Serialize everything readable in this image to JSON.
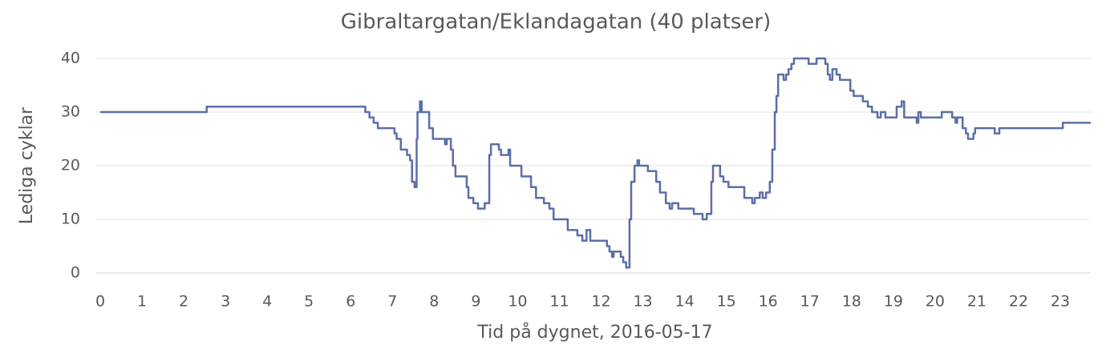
{
  "chart_data": {
    "type": "line",
    "step": true,
    "title": "Gibraltargatan/Eklandagatan (40 platser)",
    "x_label": "Tid på dygnet, 2016-05-17",
    "y_label": "Lediga cyklar",
    "color": "#5b6ea8",
    "grid": true,
    "xlim": [
      0,
      23.73
    ],
    "ylim": [
      0,
      40
    ],
    "xticks": [
      0,
      1,
      2,
      3,
      4,
      5,
      6,
      7,
      8,
      9,
      10,
      11,
      12,
      13,
      14,
      15,
      16,
      17,
      18,
      19,
      20,
      21,
      22,
      23
    ],
    "yticks": [
      0,
      10,
      20,
      30,
      40
    ],
    "x": [
      0,
      2.55,
      6.35,
      6.45,
      6.55,
      6.65,
      7.05,
      7.1,
      7.2,
      7.35,
      7.42,
      7.47,
      7.53,
      7.58,
      7.6,
      7.66,
      7.7,
      7.88,
      7.97,
      8.26,
      8.3,
      8.4,
      8.45,
      8.51,
      8.78,
      8.82,
      8.94,
      9.05,
      9.21,
      9.32,
      9.36,
      9.55,
      9.6,
      9.78,
      9.82,
      10.09,
      10.32,
      10.44,
      10.63,
      10.76,
      10.86,
      11.2,
      11.43,
      11.55,
      11.65,
      11.74,
      12.14,
      12.2,
      12.26,
      12.3,
      12.47,
      12.53,
      12.6,
      12.68,
      12.72,
      12.8,
      12.87,
      12.91,
      13.12,
      13.32,
      13.41,
      13.55,
      13.64,
      13.7,
      13.85,
      14.22,
      14.43,
      14.53,
      14.64,
      14.68,
      14.85,
      14.93,
      15.05,
      15.43,
      15.62,
      15.68,
      15.8,
      15.87,
      15.95,
      16.04,
      16.1,
      16.16,
      16.2,
      16.24,
      16.37,
      16.43,
      16.49,
      16.56,
      16.62,
      16.97,
      17.16,
      17.37,
      17.43,
      17.48,
      17.54,
      17.64,
      17.72,
      17.97,
      18.05,
      18.27,
      18.39,
      18.49,
      18.62,
      18.7,
      18.81,
      19.08,
      19.2,
      19.26,
      19.56,
      19.6,
      19.66,
      20.16,
      20.41,
      20.49,
      20.53,
      20.66,
      20.74,
      20.79,
      20.92,
      20.96,
      21.43,
      21.54,
      23.06,
      23.73
    ],
    "values": [
      30,
      31,
      30,
      29,
      28,
      27,
      26,
      25,
      23,
      22,
      21,
      17,
      16,
      25,
      30,
      32,
      30,
      27,
      25,
      24,
      25,
      23,
      20,
      18,
      16,
      14,
      13,
      12,
      13,
      22,
      24,
      23,
      22,
      23,
      20,
      18,
      16,
      14,
      13,
      12,
      10,
      8,
      7,
      6,
      8,
      6,
      5,
      4,
      3,
      4,
      3,
      2,
      1,
      10,
      17,
      20,
      21,
      20,
      19,
      17,
      15,
      13,
      12,
      13,
      12,
      11,
      10,
      11,
      17,
      20,
      18,
      17,
      16,
      14,
      13,
      14,
      15,
      14,
      15,
      17,
      23,
      30,
      33,
      37,
      36,
      37,
      38,
      39,
      40,
      39,
      40,
      39,
      37,
      36,
      38,
      37,
      36,
      34,
      33,
      32,
      31,
      30,
      29,
      30,
      29,
      31,
      32,
      29,
      28,
      30,
      29,
      30,
      29,
      28,
      29,
      27,
      26,
      25,
      26,
      27,
      26,
      27,
      28,
      28
    ]
  }
}
